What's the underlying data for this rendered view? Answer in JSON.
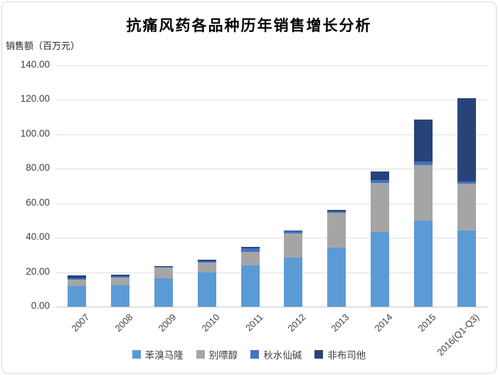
{
  "page": {
    "background_color": "#ffffff",
    "frame_border_color": "#d9d9d9"
  },
  "chart_data": {
    "type": "bar",
    "stacked": true,
    "title": "抗痛风药各品种历年销售增长分析",
    "ylabel": "销售额（百万元）",
    "xlabel": "",
    "grid": true,
    "legend_position": "bottom",
    "ylim": [
      0,
      140
    ],
    "ytick_step": 20,
    "ytick_labels": [
      "140.00",
      "120.00",
      "100.00",
      "80.00",
      "60.00",
      "40.00",
      "20.00",
      "0.00"
    ],
    "categories": [
      "2007",
      "2008",
      "2009",
      "2010",
      "2011",
      "2012",
      "2013",
      "2014",
      "2015",
      "2016(Q1-Q3)"
    ],
    "series": [
      {
        "key": "benzbromarone",
        "name": "苯溴马隆",
        "color": "#5B9BD5",
        "values": [
          12.1,
          12.6,
          16.4,
          19.8,
          23.8,
          28.4,
          34.1,
          43.4,
          49.9,
          44.1
        ]
      },
      {
        "key": "allopurinol",
        "name": "别嘌醇",
        "color": "#A5A5A5",
        "values": [
          3.7,
          4.2,
          6.2,
          5.8,
          8.2,
          14.0,
          20.4,
          28.3,
          32.1,
          27.5
        ]
      },
      {
        "key": "colchicine",
        "name": "秋水仙碱",
        "color": "#4472C4",
        "values": [
          0.6,
          1.0,
          0.6,
          1.0,
          1.7,
          1.4,
          1.0,
          1.7,
          2.1,
          1.1
        ]
      },
      {
        "key": "febuxostat",
        "name": "非布司他",
        "color": "#264478",
        "values": [
          1.9,
          1.0,
          0.4,
          0.5,
          1.0,
          0.6,
          0.7,
          5.1,
          24.4,
          48.2
        ]
      }
    ],
    "totals": [
      18.3,
      18.8,
      23.6,
      27.1,
      34.7,
      44.4,
      56.2,
      78.5,
      108.5,
      120.9
    ]
  }
}
